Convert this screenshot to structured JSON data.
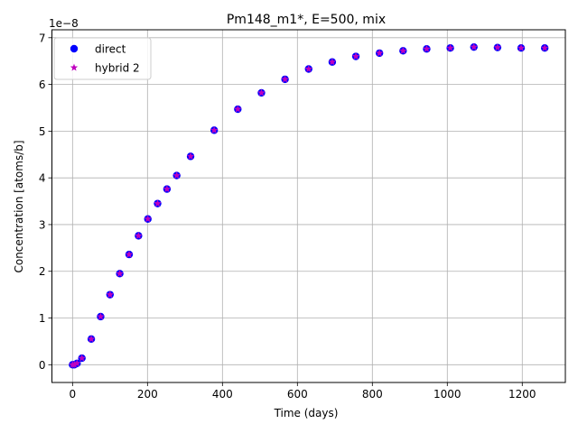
{
  "chart_data": {
    "type": "scatter",
    "title": "Pm148_m1*, E=500, mix",
    "xlabel": "Time (days)",
    "ylabel": "Concentration [atoms/b]",
    "y_multiplier_label": "1e−8",
    "xlim": [
      -55,
      1315
    ],
    "ylim": [
      -0.38,
      7.17
    ],
    "x_ticks": [
      0,
      200,
      400,
      600,
      800,
      1000,
      1200
    ],
    "x_tick_labels": [
      "0",
      "200",
      "400",
      "600",
      "800",
      "1000",
      "1200"
    ],
    "y_ticks": [
      0,
      1,
      2,
      3,
      4,
      5,
      6,
      7
    ],
    "y_tick_labels": [
      "0",
      "1",
      "2",
      "3",
      "4",
      "5",
      "6",
      "7"
    ],
    "grid": true,
    "legend_position": "top-left",
    "x": [
      0,
      5,
      12,
      25,
      50,
      75,
      100,
      126,
      151,
      176,
      201,
      227,
      252,
      278,
      315,
      378,
      441,
      504,
      567,
      630,
      693,
      756,
      819,
      882,
      945,
      1008,
      1071,
      1134,
      1197,
      1260
    ],
    "series": [
      {
        "name": "direct",
        "marker": "circle",
        "color": "#0000ff",
        "values": [
          0.0,
          0.0,
          0.03,
          0.14,
          0.55,
          1.03,
          1.5,
          1.95,
          2.36,
          2.76,
          3.12,
          3.45,
          3.76,
          4.05,
          4.46,
          5.02,
          5.47,
          5.82,
          6.11,
          6.33,
          6.48,
          6.6,
          6.67,
          6.72,
          6.76,
          6.78,
          6.8,
          6.79,
          6.78,
          6.78
        ]
      },
      {
        "name": "hybrid 2",
        "marker": "star",
        "color": "#bf00bf",
        "values": [
          0.0,
          0.0,
          0.03,
          0.14,
          0.55,
          1.03,
          1.5,
          1.95,
          2.36,
          2.76,
          3.12,
          3.45,
          3.76,
          4.05,
          4.46,
          5.02,
          5.47,
          5.82,
          6.11,
          6.33,
          6.48,
          6.6,
          6.67,
          6.72,
          6.76,
          6.78,
          6.8,
          6.79,
          6.78,
          6.78
        ]
      }
    ]
  }
}
